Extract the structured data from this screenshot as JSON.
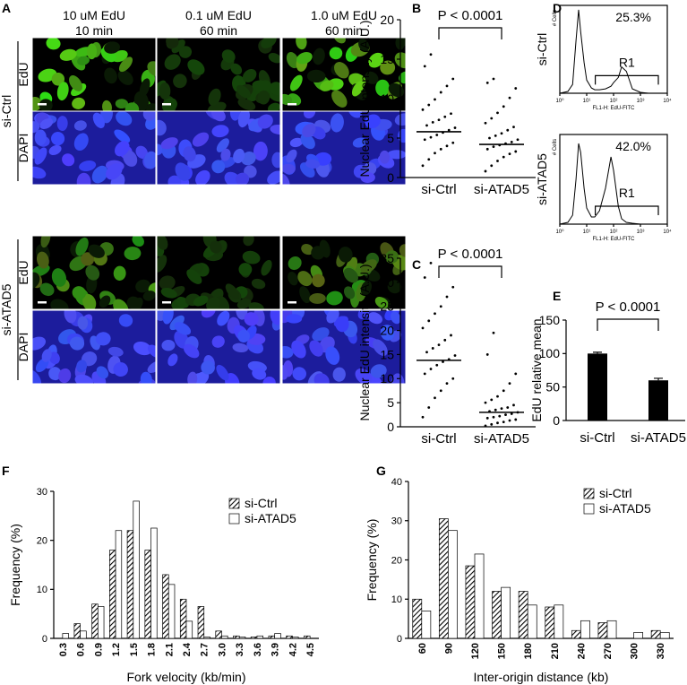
{
  "panel_a": {
    "label": "A",
    "columns": [
      {
        "line1": "10 uM EdU",
        "line2": "10 min"
      },
      {
        "line1": "0.1 uM EdU",
        "line2": "60 min"
      },
      {
        "line1": "1.0 uM EdU",
        "line2": "60 min"
      }
    ],
    "groups": [
      {
        "name": "si-Ctrl",
        "rows": [
          "EdU",
          "DAPI"
        ]
      },
      {
        "name": "si-ATAD5",
        "rows": [
          "EdU",
          "DAPI"
        ]
      }
    ]
  },
  "chart_data": [
    {
      "panel": "B",
      "type": "dot",
      "ylabel": "Nuclear EdU intensity (A.U.)",
      "annotation": "P < 0.0001",
      "color": "#000000",
      "categories": [
        "si-Ctrl",
        "si-ATAD5"
      ],
      "points": [
        [
          1.5,
          2.3,
          3.1,
          3.6,
          4.0,
          4.4,
          4.8,
          5.1,
          5.4,
          5.7,
          6.0,
          6.3,
          6.6,
          7.0,
          7.3,
          7.7,
          8.1,
          8.6,
          9.2,
          9.9,
          10.8,
          11.6,
          12.5,
          14.1,
          15.6
        ],
        [
          0.8,
          1.5,
          2.1,
          2.6,
          3.0,
          3.3,
          3.6,
          3.9,
          4.1,
          4.3,
          4.5,
          4.8,
          5.0,
          5.3,
          5.6,
          6.0,
          6.4,
          6.9,
          7.5,
          8.2,
          9.0,
          10.1,
          11.3,
          12.0,
          12.5
        ]
      ],
      "means": [
        5.8,
        4.2
      ],
      "ylim": [
        0,
        20
      ],
      "yticks": [
        0,
        5,
        10,
        15,
        20
      ]
    },
    {
      "panel": "C",
      "type": "dot",
      "ylabel": "Nuclear EdU intensity (A.U.)",
      "annotation": "P < 0.0001",
      "color": "#000000",
      "categories": [
        "si-Ctrl",
        "si-ATAD5"
      ],
      "points": [
        [
          2,
          4,
          6,
          7.5,
          9,
          10,
          11,
          12,
          12.8,
          13.5,
          14,
          14.8,
          15.5,
          16.3,
          17,
          18,
          19,
          20.5,
          22,
          23.5,
          25,
          27,
          29,
          31,
          34
        ],
        [
          0.2,
          0.5,
          0.8,
          1,
          1.3,
          1.5,
          1.8,
          2,
          2.2,
          2.5,
          2.7,
          3,
          3.2,
          3.5,
          3.8,
          4,
          4.5,
          5,
          5.6,
          6.3,
          7.5,
          9,
          11,
          15,
          19.5
        ]
      ],
      "means": [
        13.8,
        3.0
      ],
      "ylim": [
        0,
        35
      ],
      "yticks": [
        0,
        5,
        10,
        15,
        20,
        25,
        30,
        35
      ]
    },
    {
      "panel": "D",
      "type": "line",
      "label": "si-Ctrl",
      "ylabel": "# Cells",
      "xlabel": "FL1-H: EdU-FITC",
      "annotations": [
        "25.3%",
        "R1"
      ],
      "log_x": true,
      "color": "#000000",
      "x": [
        1,
        2,
        3,
        4,
        5,
        6,
        8,
        10,
        15,
        20,
        30,
        50,
        80,
        100,
        150,
        200,
        300,
        500,
        1000,
        2000,
        5000,
        10000
      ],
      "values": [
        0,
        2,
        10,
        60,
        95,
        70,
        35,
        15,
        6,
        4,
        4,
        5,
        8,
        12,
        18,
        30,
        25,
        5,
        1,
        0,
        0,
        0
      ],
      "xlim": [
        1,
        10000
      ],
      "ylim": [
        0,
        100
      ],
      "xticks": [
        {
          "value": 1,
          "label": "10⁰"
        },
        {
          "value": 10,
          "label": "10¹"
        },
        {
          "value": 100,
          "label": "10²"
        },
        {
          "value": 1000,
          "label": "10³"
        },
        {
          "value": 10000,
          "label": "10⁴"
        }
      ]
    },
    {
      "type": "line",
      "label": "si-ATAD5",
      "ylabel": "# Cells",
      "xlabel": "FL1-H: EdU-FITC",
      "annotations": [
        "42.0%",
        "R1"
      ],
      "log_x": true,
      "color": "#000000",
      "x": [
        1,
        2,
        3,
        4,
        5,
        6,
        8,
        10,
        15,
        20,
        30,
        50,
        80,
        100,
        150,
        200,
        300,
        500,
        1000,
        2000,
        5000,
        10000
      ],
      "values": [
        0,
        2,
        10,
        50,
        90,
        80,
        40,
        18,
        8,
        8,
        15,
        40,
        75,
        60,
        20,
        6,
        2,
        1,
        0,
        0,
        0,
        0
      ],
      "xlim": [
        1,
        10000
      ],
      "ylim": [
        0,
        100
      ],
      "xticks": [
        {
          "value": 1,
          "label": "10⁰"
        },
        {
          "value": 10,
          "label": "10¹"
        },
        {
          "value": 100,
          "label": "10²"
        },
        {
          "value": 1000,
          "label": "10³"
        },
        {
          "value": 10000,
          "label": "10⁴"
        }
      ]
    },
    {
      "panel": "E",
      "type": "bar",
      "ylabel": "EdU relative mean",
      "annotation": "P < 0.0001",
      "color": "#000000",
      "categories": [
        "si-Ctrl",
        "si-ATAD5"
      ],
      "values": [
        100,
        60
      ],
      "errors": [
        2,
        3
      ],
      "ylim": [
        0,
        150
      ],
      "yticks": [
        0,
        50,
        100,
        150
      ]
    },
    {
      "panel": "F",
      "type": "grouped_bar",
      "xlabel": "Fork velocity (kb/min)",
      "ylabel": "Frequency (%)",
      "legend": "upper right",
      "categories": [
        "0.3",
        "0.6",
        "0.9",
        "1.2",
        "1.5",
        "1.8",
        "2.1",
        "2.4",
        "2.7",
        "3.0",
        "3.3",
        "3.6",
        "3.9",
        "4.2",
        "4.5"
      ],
      "series": [
        {
          "name": "si-Ctrl",
          "pattern": "hatch",
          "color": "#000000",
          "values": [
            0,
            3,
            7,
            18,
            22,
            18,
            13,
            8,
            6.5,
            1.5,
            0.5,
            0.3,
            0.5,
            0.5,
            0.5
          ]
        },
        {
          "name": "si-ATAD5",
          "color": "#ffffff",
          "values": [
            1,
            1.5,
            6.5,
            22,
            28,
            22.5,
            11,
            3.5,
            0.3,
            0.5,
            0.3,
            0.5,
            1,
            0.3,
            0
          ]
        }
      ],
      "ylim": [
        0,
        30
      ],
      "yticks": [
        0,
        10,
        20,
        30
      ]
    },
    {
      "panel": "G",
      "type": "grouped_bar",
      "xlabel": "Inter-origin distance (kb)",
      "ylabel": "Frequency (%)",
      "legend": "upper right",
      "categories": [
        "60",
        "90",
        "120",
        "150",
        "180",
        "210",
        "240",
        "270",
        "300",
        "330"
      ],
      "series": [
        {
          "name": "si-Ctrl",
          "pattern": "hatch",
          "color": "#000000",
          "values": [
            10,
            30.5,
            18.5,
            12,
            12,
            8,
            2,
            4,
            0,
            2
          ]
        },
        {
          "name": "si-ATAD5",
          "color": "#ffffff",
          "values": [
            7,
            27.5,
            21.5,
            13,
            8.5,
            8.5,
            4.5,
            4.5,
            1.5,
            1.5
          ]
        }
      ],
      "ylim": [
        0,
        40
      ],
      "yticks": [
        0,
        10,
        20,
        30,
        40
      ]
    }
  ]
}
